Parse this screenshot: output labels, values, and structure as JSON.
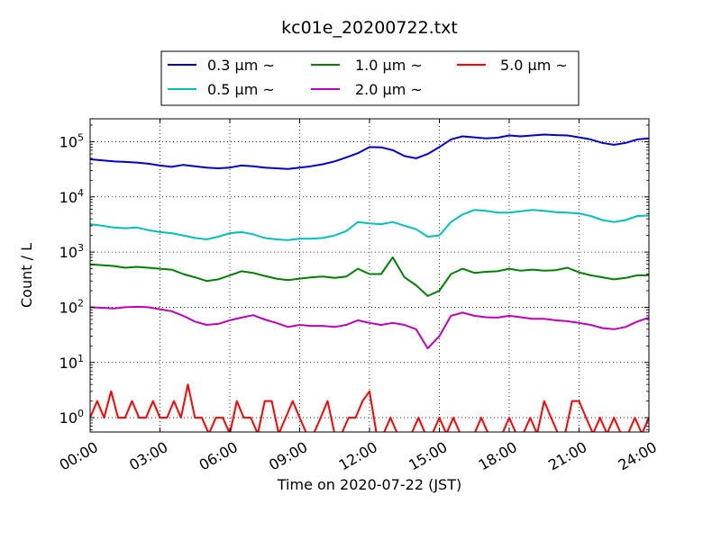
{
  "chart_data": {
    "type": "line",
    "title": "kc01e_20200722.txt",
    "xlabel": "Time on 2020-07-22 (JST)",
    "ylabel": "Count / L",
    "yscale": "log",
    "xlim": [
      0,
      24
    ],
    "ylim": [
      0.55,
      260000
    ],
    "grid": true,
    "legend_position": "top-center, above plot",
    "x_ticks": [
      "00:00",
      "03:00",
      "06:00",
      "09:00",
      "12:00",
      "15:00",
      "18:00",
      "21:00",
      "24:00"
    ],
    "y_ticks": [
      {
        "value": 1,
        "base": "10",
        "exp": "0"
      },
      {
        "value": 10,
        "base": "10",
        "exp": "1"
      },
      {
        "value": 100,
        "base": "10",
        "exp": "2"
      },
      {
        "value": 1000,
        "base": "10",
        "exp": "3"
      },
      {
        "value": 10000,
        "base": "10",
        "exp": "4"
      },
      {
        "value": 100000,
        "base": "10",
        "exp": "5"
      }
    ],
    "series": [
      {
        "name": "0.3 μm ~",
        "color": "#0000cc",
        "x": [
          0,
          0.5,
          1,
          1.5,
          2,
          2.5,
          3,
          3.5,
          4,
          4.5,
          5,
          5.5,
          6,
          6.5,
          7,
          7.5,
          8,
          8.5,
          9,
          9.5,
          10,
          10.5,
          11,
          11.5,
          12,
          12.5,
          13,
          13.5,
          14,
          14.5,
          15,
          15.5,
          16,
          16.5,
          17,
          17.5,
          18,
          18.5,
          19,
          19.5,
          20,
          20.5,
          21,
          21.5,
          22,
          22.5,
          23,
          23.5,
          24
        ],
        "y": [
          48000,
          46000,
          44000,
          43000,
          42000,
          40000,
          37000,
          35000,
          38000,
          36000,
          34000,
          33000,
          34000,
          37000,
          36000,
          34000,
          33000,
          32000,
          34000,
          36000,
          39000,
          44000,
          52000,
          62000,
          80000,
          79000,
          70000,
          55000,
          50000,
          60000,
          80000,
          110000,
          125000,
          120000,
          115000,
          118000,
          130000,
          125000,
          130000,
          135000,
          132000,
          130000,
          120000,
          110000,
          95000,
          88000,
          95000,
          110000,
          115000
        ]
      },
      {
        "name": "0.5 μm ~",
        "color": "#00bfbf",
        "x": [
          0,
          0.5,
          1,
          1.5,
          2,
          2.5,
          3,
          3.5,
          4,
          4.5,
          5,
          5.5,
          6,
          6.5,
          7,
          7.5,
          8,
          8.5,
          9,
          9.5,
          10,
          10.5,
          11,
          11.5,
          12,
          12.5,
          13,
          13.5,
          14,
          14.5,
          15,
          15.5,
          16,
          16.5,
          17,
          17.5,
          18,
          18.5,
          19,
          19.5,
          20,
          20.5,
          21,
          21.5,
          22,
          22.5,
          23,
          23.5,
          24
        ],
        "y": [
          3200,
          3000,
          2800,
          2700,
          2800,
          2500,
          2300,
          2200,
          2000,
          1800,
          1700,
          1900,
          2200,
          2300,
          2100,
          1800,
          1700,
          1650,
          1750,
          1750,
          1800,
          2000,
          2400,
          3500,
          3300,
          3200,
          3500,
          3000,
          2600,
          1900,
          2000,
          3500,
          4800,
          5800,
          5600,
          5200,
          5200,
          5500,
          5800,
          5600,
          5300,
          5200,
          5000,
          4500,
          3800,
          3500,
          3800,
          4500,
          4600
        ]
      },
      {
        "name": "1.0 μm ~",
        "color": "#008000",
        "x": [
          0,
          0.5,
          1,
          1.5,
          2,
          2.5,
          3,
          3.5,
          4,
          4.5,
          5,
          5.5,
          6,
          6.5,
          7,
          7.5,
          8,
          8.5,
          9,
          9.5,
          10,
          10.5,
          11,
          11.5,
          12,
          12.5,
          13,
          13.5,
          14,
          14.5,
          15,
          15.5,
          16,
          16.5,
          17,
          17.5,
          18,
          18.5,
          19,
          19.5,
          20,
          20.5,
          21,
          21.5,
          22,
          22.5,
          23,
          23.5,
          24
        ],
        "y": [
          600,
          580,
          560,
          520,
          540,
          520,
          500,
          480,
          400,
          350,
          300,
          320,
          380,
          450,
          420,
          370,
          330,
          310,
          330,
          350,
          360,
          340,
          360,
          500,
          400,
          400,
          800,
          350,
          250,
          160,
          200,
          400,
          500,
          420,
          440,
          450,
          500,
          460,
          480,
          460,
          470,
          520,
          430,
          380,
          350,
          320,
          340,
          380,
          380
        ]
      },
      {
        "name": "2.0 μm ~",
        "color": "#bf00bf",
        "x": [
          0,
          0.5,
          1,
          1.5,
          2,
          2.5,
          3,
          3.5,
          4,
          4.5,
          5,
          5.5,
          6,
          6.5,
          7,
          7.5,
          8,
          8.5,
          9,
          9.5,
          10,
          10.5,
          11,
          11.5,
          12,
          12.5,
          13,
          13.5,
          14,
          14.5,
          15,
          15.5,
          16,
          16.5,
          17,
          17.5,
          18,
          18.5,
          19,
          19.5,
          20,
          20.5,
          21,
          21.5,
          22,
          22.5,
          23,
          23.5,
          24
        ],
        "y": [
          100,
          98,
          95,
          100,
          102,
          100,
          92,
          85,
          70,
          55,
          48,
          50,
          58,
          65,
          72,
          60,
          52,
          44,
          48,
          46,
          46,
          44,
          48,
          58,
          52,
          48,
          52,
          48,
          40,
          18,
          30,
          70,
          80,
          70,
          66,
          65,
          70,
          66,
          62,
          62,
          58,
          56,
          52,
          48,
          42,
          40,
          44,
          55,
          65
        ]
      },
      {
        "name": "5.0 μm ~",
        "color": "#ff0000",
        "spiky": true,
        "x": [
          0,
          0.3,
          0.6,
          0.9,
          1.2,
          1.5,
          1.8,
          2.1,
          2.4,
          2.7,
          3,
          3.3,
          3.6,
          3.9,
          4.2,
          4.5,
          4.8,
          5.1,
          5.4,
          5.7,
          6,
          6.3,
          6.6,
          6.9,
          7.2,
          7.5,
          7.8,
          8.1,
          8.4,
          8.7,
          9,
          9.3,
          9.6,
          9.9,
          10.2,
          10.5,
          10.8,
          11.1,
          11.4,
          11.7,
          12,
          12.3,
          12.6,
          12.9,
          13.2,
          13.5,
          13.8,
          14.1,
          14.4,
          14.7,
          15,
          15.3,
          15.6,
          15.9,
          16.2,
          16.5,
          16.8,
          17.1,
          17.4,
          17.7,
          18,
          18.3,
          18.6,
          18.9,
          19.2,
          19.5,
          19.8,
          20.1,
          20.4,
          20.7,
          21,
          21.3,
          21.6,
          21.9,
          22.2,
          22.5,
          22.8,
          23.1,
          23.4,
          23.7,
          24
        ],
        "y": [
          1,
          2,
          1,
          3,
          1,
          1,
          2,
          1,
          1,
          2,
          1,
          1,
          2,
          1,
          4,
          1,
          1,
          0,
          1,
          1,
          0,
          2,
          1,
          1,
          0,
          2,
          2,
          0,
          1,
          2,
          1,
          0,
          0,
          1,
          2,
          0,
          0,
          1,
          1,
          2,
          3,
          0,
          0,
          1,
          0,
          0,
          0,
          1,
          0,
          0,
          1,
          0,
          1,
          0,
          0,
          0,
          1,
          0,
          0,
          0,
          1,
          0,
          0,
          1,
          0,
          2,
          1,
          0,
          0,
          2,
          2,
          1,
          0,
          1,
          0,
          1,
          0,
          0,
          1,
          0,
          1
        ]
      }
    ]
  }
}
